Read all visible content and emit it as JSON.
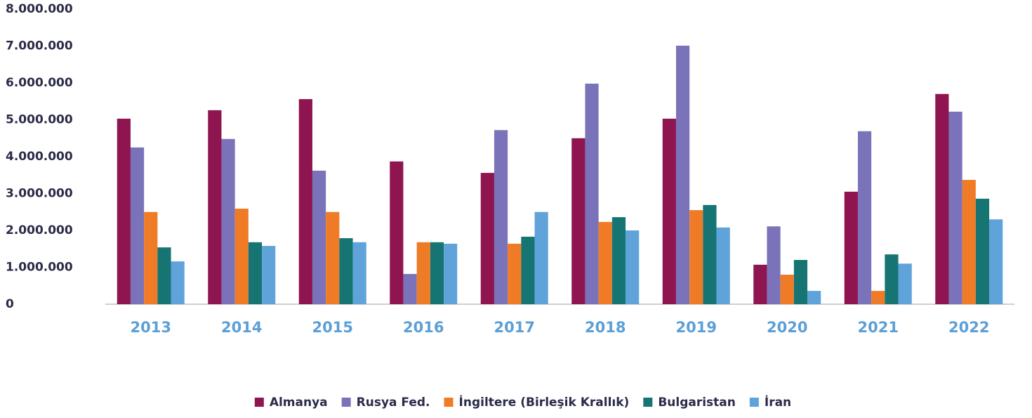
{
  "chart_data": {
    "type": "bar",
    "categories": [
      "2013",
      "2014",
      "2015",
      "2016",
      "2017",
      "2018",
      "2019",
      "2020",
      "2021",
      "2022"
    ],
    "series": [
      {
        "name": "Almanya",
        "color": "#8e1550",
        "values": [
          5030000,
          5260000,
          5560000,
          3870000,
          3560000,
          4500000,
          5030000,
          1070000,
          3050000,
          5700000
        ]
      },
      {
        "name": "Rusya Fed.",
        "color": "#7b73ba",
        "values": [
          4250000,
          4480000,
          3620000,
          820000,
          4720000,
          5980000,
          7010000,
          2110000,
          4690000,
          5220000
        ]
      },
      {
        "name": "İngiltere (Birleşik Krallık)",
        "color": "#f07b26",
        "values": [
          2500000,
          2590000,
          2500000,
          1680000,
          1640000,
          2230000,
          2550000,
          800000,
          360000,
          3370000
        ]
      },
      {
        "name": "Bulgaristan",
        "color": "#167573",
        "values": [
          1540000,
          1680000,
          1790000,
          1680000,
          1830000,
          2360000,
          2690000,
          1200000,
          1350000,
          2860000
        ]
      },
      {
        "name": "İran",
        "color": "#5fa3da",
        "values": [
          1160000,
          1580000,
          1680000,
          1640000,
          2500000,
          2000000,
          2080000,
          360000,
          1100000,
          2300000
        ]
      }
    ],
    "ylim": [
      0,
      8000000
    ],
    "yticks": [
      0,
      {
        "value": 1000000,
        "label": "1.000.000"
      },
      {
        "value": 2000000,
        "label": "2.000.000"
      },
      {
        "value": 3000000,
        "label": "3.000.000"
      },
      {
        "value": 4000000,
        "label": "4.000.000"
      },
      {
        "value": 5000000,
        "label": "5.000.000"
      },
      {
        "value": 6000000,
        "label": "6.000.000"
      },
      {
        "value": 7000000,
        "label": "7.000.000"
      },
      {
        "value": 8000000,
        "label": "8.000.000"
      }
    ],
    "grid": false
  }
}
